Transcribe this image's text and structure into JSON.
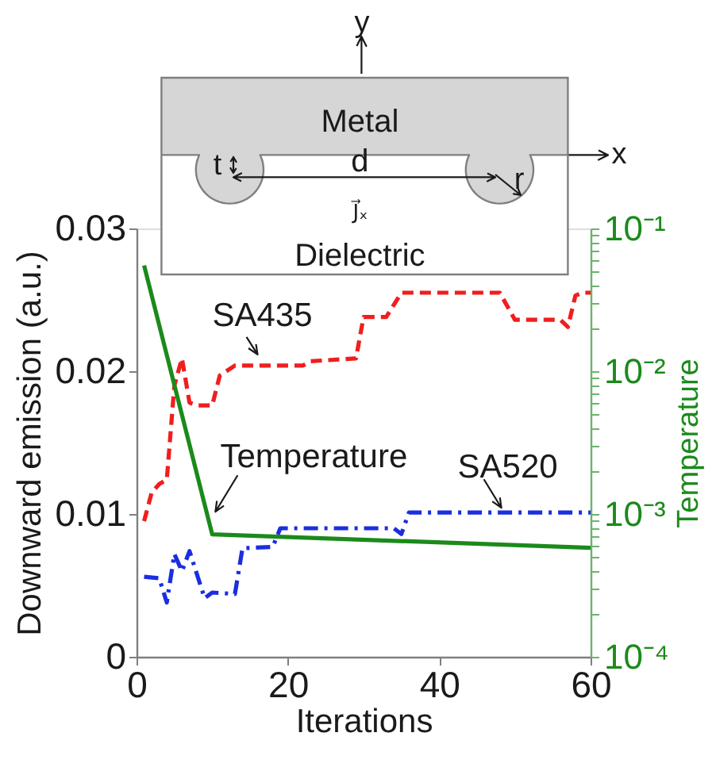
{
  "chart_data": {
    "type": "line",
    "xlabel": "Iterations",
    "ylabel": "Downward emission (a.u.)",
    "y2label": "Temperature",
    "xlim": [
      0,
      60
    ],
    "xticks": [
      0,
      20,
      40,
      60
    ],
    "ylim": [
      0,
      0.03
    ],
    "yticks": [
      0,
      0.01,
      0.02,
      0.03
    ],
    "y2lim": [
      0.0001,
      0.1
    ],
    "log": "y2",
    "y2ticks": [
      {
        "value": 0.0001,
        "label": "10⁻⁴"
      },
      {
        "value": 0.0002,
        "label": null
      },
      {
        "value": 0.0003,
        "label": null
      },
      {
        "value": 0.0004,
        "label": null
      },
      {
        "value": 0.0005,
        "label": null
      },
      {
        "value": 0.0006,
        "label": null
      },
      {
        "value": 0.0007,
        "label": null
      },
      {
        "value": 0.0008,
        "label": null
      },
      {
        "value": 0.0009,
        "label": null
      },
      {
        "value": 0.001,
        "label": "10⁻³"
      },
      {
        "value": 0.002,
        "label": null
      },
      {
        "value": 0.003,
        "label": null
      },
      {
        "value": 0.004,
        "label": null
      },
      {
        "value": 0.005,
        "label": null
      },
      {
        "value": 0.006,
        "label": null
      },
      {
        "value": 0.007,
        "label": null
      },
      {
        "value": 0.008,
        "label": null
      },
      {
        "value": 0.009,
        "label": null
      },
      {
        "value": 0.01,
        "label": "10⁻²"
      },
      {
        "value": 0.02,
        "label": null
      },
      {
        "value": 0.03,
        "label": null
      },
      {
        "value": 0.04,
        "label": null
      },
      {
        "value": 0.05,
        "label": null
      },
      {
        "value": 0.06,
        "label": null
      },
      {
        "value": 0.07,
        "label": null
      },
      {
        "value": 0.08,
        "label": null
      },
      {
        "value": 0.09,
        "label": null
      },
      {
        "value": 0.1,
        "label": "10⁻¹"
      }
    ],
    "series": [
      {
        "color": "#f01e1e",
        "line_style": "dashed",
        "x": [
          1,
          2,
          3,
          4,
          5,
          6,
          7,
          8,
          10,
          11,
          13,
          22,
          23,
          29,
          30,
          33,
          35,
          48,
          50,
          56,
          57,
          58,
          59,
          60
        ],
        "values": [
          0.0095,
          0.0115,
          0.0121,
          0.0124,
          0.019,
          0.0209,
          0.0178,
          0.0176,
          0.0176,
          0.0197,
          0.0204,
          0.0204,
          0.0207,
          0.0209,
          0.0238,
          0.0238,
          0.0255,
          0.0255,
          0.0236,
          0.0236,
          0.0231,
          0.0253,
          0.0255,
          0.0255
        ]
      },
      {
        "color": "#1a2ee0",
        "line_style": "dashdot",
        "x": [
          1,
          3,
          4,
          5,
          6,
          7,
          9,
          10,
          13,
          14,
          18,
          19,
          34,
          35,
          36,
          60
        ],
        "values": [
          0.0056,
          0.0055,
          0.0038,
          0.0072,
          0.006,
          0.0074,
          0.0041,
          0.0045,
          0.0044,
          0.0076,
          0.0077,
          0.009,
          0.009,
          0.0086,
          0.0101,
          0.0101
        ]
      },
      {
        "color": "#1b8a1b",
        "line_style": "solid",
        "axis": "y2",
        "x": [
          1,
          10,
          60
        ],
        "values": [
          0.055,
          0.00072,
          0.00058
        ]
      }
    ],
    "annotations": [
      {
        "text": "SA435",
        "x": 16,
        "y": 0.0204
      },
      {
        "text": "Temperature",
        "x": 10,
        "y": 0.0086
      },
      {
        "text": "SA520",
        "x": 48,
        "y": 0.0101
      },
      "Metal",
      "Dielectric",
      "d",
      "t",
      "r",
      "x",
      "y",
      "J⃗ₓ"
    ]
  }
}
